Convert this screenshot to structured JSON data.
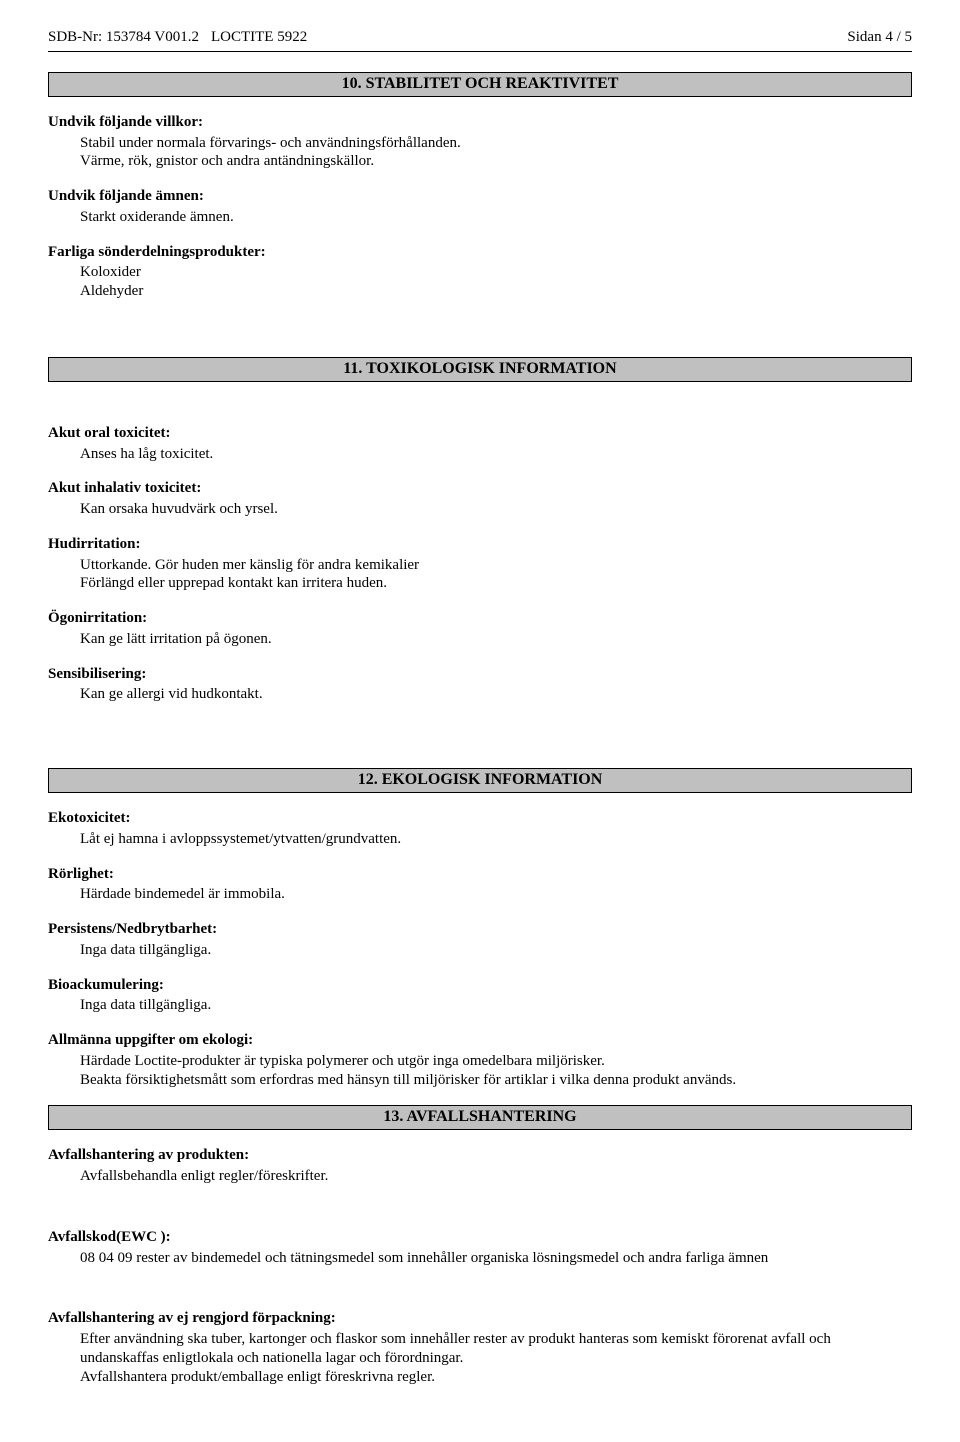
{
  "header": {
    "sdb": "SDB-Nr: 153784 V001.2",
    "product": "LOCTITE 5922",
    "page": "Sidan 4 / 5"
  },
  "section10": {
    "title": "10. STABILITET OCH REAKTIVITET",
    "conditions_label": "Undvik följande villkor:",
    "conditions_text": "Stabil under normala förvarings- och användningsförhållanden.\nVärme, rök, gnistor och andra antändningskällor.",
    "materials_label": "Undvik följande ämnen:",
    "materials_text": "Starkt oxiderande ämnen.",
    "decomp_label": "Farliga sönderdelningsprodukter:",
    "decomp_text": "Koloxider\nAldehyder"
  },
  "section11": {
    "title": "11. TOXIKOLOGISK INFORMATION",
    "oral_label": "Akut oral toxicitet:",
    "oral_text": "Anses ha låg toxicitet.",
    "inhal_label": "Akut inhalativ toxicitet:",
    "inhal_text": "Kan orsaka huvudvärk och yrsel.",
    "skin_label": "Hudirritation:",
    "skin_text": "Uttorkande. Gör huden mer känslig för andra kemikalier\nFörlängd eller upprepad kontakt kan irritera huden.",
    "eye_label": "Ögonirritation:",
    "eye_text": "Kan ge lätt irritation på ögonen.",
    "sens_label": "Sensibilisering:",
    "sens_text": "Kan ge allergi vid hudkontakt."
  },
  "section12": {
    "title": "12. EKOLOGISK INFORMATION",
    "eco_label": "Ekotoxicitet:",
    "eco_text": "Låt ej hamna i avloppssystemet/ytvatten/grundvatten.",
    "mob_label": "Rörlighet:",
    "mob_text": "Härdade bindemedel är immobila.",
    "pers_label": "Persistens/Nedbrytbarhet:",
    "pers_text": "Inga data tillgängliga.",
    "bio_label": "Bioackumulering:",
    "bio_text": "Inga data tillgängliga.",
    "gen_label": "Allmänna uppgifter om ekologi:",
    "gen_text": "Härdade Loctite-produkter är typiska polymerer och utgör inga omedelbara miljörisker.\nBeakta försiktighetsmått som erfordras med hänsyn till miljörisker för artiklar i vilka denna produkt används."
  },
  "section13": {
    "title": "13. AVFALLSHANTERING",
    "prod_label": "Avfallshantering av produkten:",
    "prod_text": "Avfallsbehandla enligt regler/föreskrifter.",
    "ewc_label": "Avfallskod(EWC ):",
    "ewc_text": "08 04 09 rester av bindemedel och tätningsmedel som innehåller organiska lösningsmedel och andra farliga ämnen",
    "pack_label": "Avfallshantering av ej rengjord förpackning:",
    "pack_text": "Efter användning ska tuber, kartonger och flaskor som innehåller rester av produkt hanteras som kemiskt förorenat avfall och undanskaffas enligtlokala och nationella lagar och förordningar.\nAvfallshantera produkt/emballage enligt föreskrivna regler."
  }
}
